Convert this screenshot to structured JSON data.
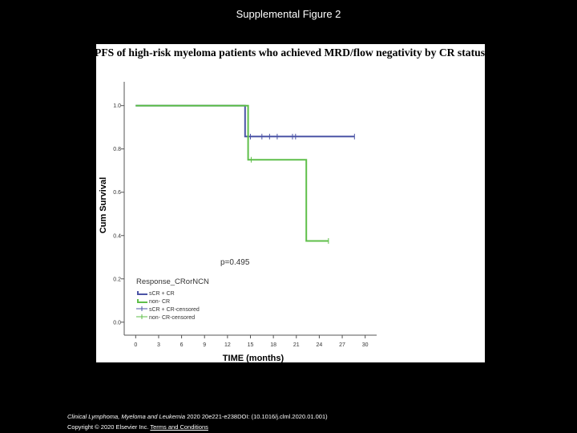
{
  "slide": {
    "title": "Supplemental Figure 2",
    "citation_journal": "Clinical Lymphoma, Myeloma and Leukemia",
    "citation_details": " 2020 20e221-e238DOI: (10.1016/j.clml.2020.01.001)",
    "copyright_text": "Copyright © 2020 Elsevier Inc.",
    "terms_link": "Terms and Conditions"
  },
  "chart_data": {
    "type": "line",
    "title": "PFS of high-risk myeloma patients who achieved MRD/flow negativity by CR status",
    "xlabel": "TIME (months)",
    "ylabel": "Cum Survival",
    "xlim": [
      -1.5,
      31.5
    ],
    "ylim": [
      -0.06,
      1.11
    ],
    "x_ticks": [
      0,
      3,
      6,
      9,
      12,
      15,
      18,
      21,
      24,
      27,
      30
    ],
    "y_ticks": [
      0.0,
      0.2,
      0.4,
      0.6,
      0.8,
      1.0
    ],
    "y_tick_labels": [
      "0.0",
      "0.2",
      "0.4",
      "0.6",
      "0.8",
      "1.0"
    ],
    "annotation": "p=0.495",
    "legend_title": "Response_CRorNCN",
    "legend_position": "bottom-left",
    "grid": false,
    "series": [
      {
        "name": "sCR + CR",
        "color": "#4b54a6",
        "steps": [
          [
            0,
            1.0
          ],
          [
            14.3,
            1.0
          ],
          [
            14.3,
            0.857
          ],
          [
            28.6,
            0.857
          ]
        ],
        "censored": [
          15.0,
          16.5,
          17.5,
          18.5,
          20.5,
          20.9,
          28.6
        ]
      },
      {
        "name": "non- CR",
        "color": "#5fbf4a",
        "steps": [
          [
            0,
            1.0
          ],
          [
            14.7,
            1.0
          ],
          [
            14.7,
            0.75
          ],
          [
            22.3,
            0.75
          ],
          [
            22.3,
            0.375
          ],
          [
            25.2,
            0.375
          ]
        ],
        "censored": [
          15.1,
          25.2
        ]
      }
    ],
    "legend": [
      {
        "label": "sCR + CR",
        "kind": "line",
        "series": 0
      },
      {
        "label": "non- CR",
        "kind": "line",
        "series": 1
      },
      {
        "label": "sCR + CR-censored",
        "kind": "censor",
        "series": 0
      },
      {
        "label": "non- CR-censored",
        "kind": "censor",
        "series": 1
      }
    ]
  }
}
